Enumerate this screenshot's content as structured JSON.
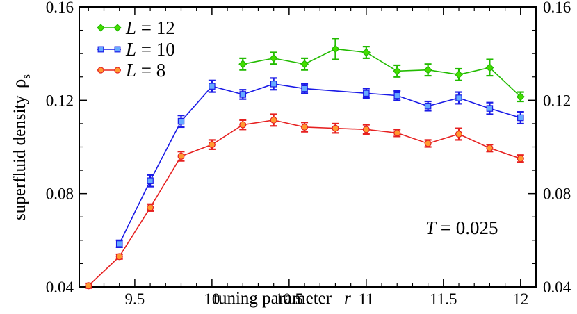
{
  "chart_data": {
    "type": "line",
    "title": "",
    "xlabel": "tuning parameter",
    "xlabel_var": "r",
    "ylabel": "superfluid density",
    "ylabel_symbol": "ρ",
    "ylabel_sub": "s",
    "xlim": [
      9.14,
      12.1
    ],
    "ylim": [
      0.04,
      0.16
    ],
    "xticks": [
      9.5,
      10,
      10.5,
      11,
      11.5,
      12
    ],
    "xtick_labels": [
      "9.5",
      "10",
      "10.5",
      "11",
      "11.5",
      "12"
    ],
    "yticks": [
      0.04,
      0.08,
      0.12,
      0.16
    ],
    "ytick_labels": [
      "0.04",
      "0.08",
      "0.12",
      "0.16"
    ],
    "right_axis_mirrors_left": true,
    "grid": false,
    "legend_position": "top-left",
    "annotation": {
      "var": "T",
      "text": " = 0.025"
    },
    "series": [
      {
        "name": "L = 12",
        "legend_var": "L",
        "legend_value": " = 12",
        "color": "#22bb00",
        "fill": "#44dd00",
        "marker": "diamond",
        "x": [
          10.2,
          10.4,
          10.6,
          10.8,
          11.0,
          11.2,
          11.4,
          11.6,
          11.8,
          12.0
        ],
        "y": [
          0.1355,
          0.138,
          0.1355,
          0.142,
          0.1405,
          0.1325,
          0.133,
          0.131,
          0.134,
          0.1215
        ],
        "err": [
          0.0025,
          0.0025,
          0.0025,
          0.0045,
          0.0025,
          0.0025,
          0.0025,
          0.0025,
          0.0035,
          0.002
        ]
      },
      {
        "name": "L = 10",
        "legend_var": "L",
        "legend_value": " = 10",
        "color": "#1a1ae6",
        "fill": "#66aaff",
        "marker": "square",
        "x": [
          9.4,
          9.6,
          9.8,
          10.0,
          10.2,
          10.4,
          10.6,
          10.8,
          11.0,
          11.2,
          11.4,
          11.6,
          11.8,
          12.0
        ],
        "y": [
          0.0585,
          0.0855,
          0.111,
          0.126,
          0.1225,
          0.127,
          0.125,
          null,
          0.123,
          0.122,
          0.1175,
          0.121,
          0.1165,
          0.1125
        ],
        "err": [
          0.0015,
          0.0025,
          0.0025,
          0.0025,
          0.002,
          0.0025,
          0.002,
          null,
          0.002,
          0.002,
          0.002,
          0.0025,
          0.0025,
          0.0025
        ]
      },
      {
        "name": "L = 8",
        "legend_var": "L",
        "legend_value": " = 8",
        "color": "#e62020",
        "fill": "#ff9a30",
        "marker": "circle",
        "x": [
          9.2,
          9.4,
          9.6,
          9.8,
          10.0,
          10.2,
          10.4,
          10.6,
          10.8,
          11.0,
          11.2,
          11.4,
          11.6,
          11.8,
          12.0
        ],
        "y": [
          0.0405,
          0.053,
          0.074,
          0.096,
          0.101,
          0.1095,
          0.1115,
          0.1085,
          0.108,
          0.1075,
          0.106,
          0.1015,
          0.1055,
          0.0995,
          0.095
        ],
        "err": [
          0.001,
          0.001,
          0.0015,
          0.002,
          0.002,
          0.002,
          0.0025,
          0.002,
          0.002,
          0.002,
          0.0015,
          0.0015,
          0.0025,
          0.0015,
          0.0015
        ]
      }
    ]
  }
}
